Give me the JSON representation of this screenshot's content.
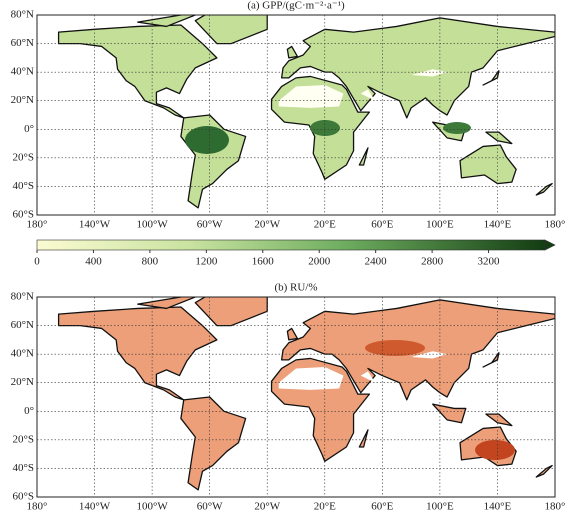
{
  "panels": [
    {
      "title": "(a) GPP/(gC·m⁻²·a⁻¹)"
    },
    {
      "title": "(b) RU/%"
    }
  ],
  "lat_ticks": [
    {
      "value": 80,
      "label": "80°N"
    },
    {
      "value": 60,
      "label": "60°N"
    },
    {
      "value": 40,
      "label": "40°N"
    },
    {
      "value": 20,
      "label": "20°N"
    },
    {
      "value": 0,
      "label": "0°"
    },
    {
      "value": -20,
      "label": "20°S"
    },
    {
      "value": -40,
      "label": "40°S"
    },
    {
      "value": -60,
      "label": "60°S"
    }
  ],
  "lon_ticks": [
    {
      "value": -180,
      "label": "180°"
    },
    {
      "value": -140,
      "label": "140°W"
    },
    {
      "value": -100,
      "label": "100°W"
    },
    {
      "value": -60,
      "label": "60°W"
    },
    {
      "value": -20,
      "label": "20°W"
    },
    {
      "value": 20,
      "label": "20°E"
    },
    {
      "value": 60,
      "label": "60°E"
    },
    {
      "value": 100,
      "label": "100°E"
    },
    {
      "value": 140,
      "label": "140°E"
    },
    {
      "value": 180,
      "label": "180°"
    }
  ],
  "colorbar": {
    "range": [
      0,
      3600
    ],
    "ticks": [
      0,
      400,
      800,
      1200,
      1600,
      2000,
      2400,
      2800,
      3200
    ]
  }
}
